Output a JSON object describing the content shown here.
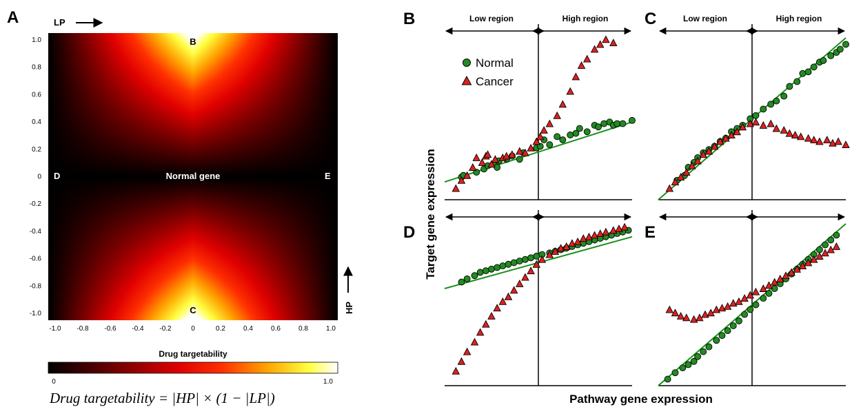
{
  "colors": {
    "normal_fill": "#228b22",
    "cancer_fill": "#e02020",
    "fit_line": "#1a8f1a",
    "heat_low": "#000000",
    "heat_mid": "#ff2000",
    "heat_high": "#ffff60"
  },
  "heatmap": {
    "letter": "A",
    "lp_label": "LP",
    "hp_label": "HP",
    "center_label": "Normal gene",
    "point_labels": {
      "B": "B",
      "C": "C",
      "D": "D",
      "E": "E"
    },
    "xticks": [
      "-1.0",
      "-0.8",
      "-0.6",
      "-0.4",
      "-0.2",
      "0",
      "0.2",
      "0.4",
      "0.6",
      "0.8",
      "1.0"
    ],
    "yticks": [
      "1.0",
      "0.8",
      "0.6",
      "0.4",
      "0.2",
      "0",
      "-0.2",
      "-0.4",
      "-0.6",
      "-0.8",
      "-1.0"
    ],
    "colorbar_title": "Drug targetability",
    "colorbar_min": "0",
    "colorbar_max": "1.0",
    "formula": "Drug targetability = |HP| × (1 − |LP|)"
  },
  "axes": {
    "ylabel": "Target gene expression",
    "xlabel": "Pathway gene expression",
    "low_region": "Low region",
    "high_region": "High region"
  },
  "legend": {
    "normal": "Normal",
    "cancer": "Cancer"
  },
  "chart_data": [
    {
      "id": "A",
      "type": "heatmap",
      "xlabel": "LP",
      "ylabel": "HP",
      "xlim": [
        -1,
        1
      ],
      "ylim": [
        -1,
        1
      ],
      "formula": "|HP| × (1 − |LP|)",
      "colorbar_range": [
        0,
        1
      ],
      "grid": false
    },
    {
      "id": "B",
      "type": "scatter",
      "regions": [
        "Low region",
        "High region"
      ],
      "fit_line": [
        [
          0.0,
          0.11
        ],
        [
          1.0,
          0.48
        ]
      ],
      "series": [
        {
          "name": "Normal",
          "points": [
            [
              0.09,
              0.14
            ],
            [
              0.1,
              0.15
            ],
            [
              0.17,
              0.17
            ],
            [
              0.21,
              0.19
            ],
            [
              0.23,
              0.21
            ],
            [
              0.26,
              0.22
            ],
            [
              0.28,
              0.2
            ],
            [
              0.29,
              0.24
            ],
            [
              0.33,
              0.25
            ],
            [
              0.36,
              0.27
            ],
            [
              0.4,
              0.25
            ],
            [
              0.42,
              0.29
            ],
            [
              0.49,
              0.32
            ],
            [
              0.51,
              0.33
            ],
            [
              0.53,
              0.37
            ],
            [
              0.56,
              0.34
            ],
            [
              0.6,
              0.39
            ],
            [
              0.63,
              0.37
            ],
            [
              0.67,
              0.4
            ],
            [
              0.7,
              0.41
            ],
            [
              0.72,
              0.44
            ],
            [
              0.76,
              0.42
            ],
            [
              0.8,
              0.46
            ],
            [
              0.82,
              0.45
            ],
            [
              0.85,
              0.47
            ],
            [
              0.88,
              0.48
            ],
            [
              0.9,
              0.46
            ],
            [
              0.92,
              0.47
            ],
            [
              0.95,
              0.47
            ],
            [
              1.0,
              0.49
            ]
          ]
        },
        {
          "name": "Cancer",
          "points": [
            [
              0.06,
              0.07
            ],
            [
              0.09,
              0.12
            ],
            [
              0.12,
              0.15
            ],
            [
              0.15,
              0.2
            ],
            [
              0.17,
              0.26
            ],
            [
              0.2,
              0.23
            ],
            [
              0.22,
              0.27
            ],
            [
              0.23,
              0.28
            ],
            [
              0.25,
              0.22
            ],
            [
              0.27,
              0.25
            ],
            [
              0.31,
              0.26
            ],
            [
              0.33,
              0.27
            ],
            [
              0.36,
              0.28
            ],
            [
              0.4,
              0.3
            ],
            [
              0.43,
              0.29
            ],
            [
              0.46,
              0.32
            ],
            [
              0.49,
              0.36
            ],
            [
              0.51,
              0.39
            ],
            [
              0.53,
              0.43
            ],
            [
              0.56,
              0.47
            ],
            [
              0.6,
              0.52
            ],
            [
              0.63,
              0.59
            ],
            [
              0.67,
              0.67
            ],
            [
              0.7,
              0.76
            ],
            [
              0.73,
              0.83
            ],
            [
              0.76,
              0.87
            ],
            [
              0.8,
              0.93
            ],
            [
              0.83,
              0.96
            ],
            [
              0.86,
              0.99
            ],
            [
              0.9,
              0.97
            ]
          ]
        }
      ]
    },
    {
      "id": "C",
      "type": "scatter",
      "regions": [
        "Low region",
        "High region"
      ],
      "fit_line": [
        [
          0.0,
          0.0
        ],
        [
          1.0,
          1.0
        ]
      ],
      "series": [
        {
          "name": "Normal",
          "points": [
            [
              0.1,
              0.12
            ],
            [
              0.14,
              0.15
            ],
            [
              0.16,
              0.2
            ],
            [
              0.19,
              0.23
            ],
            [
              0.21,
              0.26
            ],
            [
              0.24,
              0.29
            ],
            [
              0.27,
              0.31
            ],
            [
              0.3,
              0.33
            ],
            [
              0.33,
              0.36
            ],
            [
              0.36,
              0.38
            ],
            [
              0.39,
              0.42
            ],
            [
              0.42,
              0.44
            ],
            [
              0.45,
              0.46
            ],
            [
              0.49,
              0.5
            ],
            [
              0.52,
              0.52
            ],
            [
              0.56,
              0.56
            ],
            [
              0.6,
              0.59
            ],
            [
              0.63,
              0.61
            ],
            [
              0.67,
              0.64
            ],
            [
              0.7,
              0.7
            ],
            [
              0.74,
              0.73
            ],
            [
              0.77,
              0.78
            ],
            [
              0.8,
              0.79
            ],
            [
              0.83,
              0.82
            ],
            [
              0.86,
              0.85
            ],
            [
              0.88,
              0.86
            ],
            [
              0.92,
              0.89
            ],
            [
              0.95,
              0.91
            ],
            [
              0.97,
              0.93
            ],
            [
              1.0,
              0.96
            ]
          ]
        },
        {
          "name": "Cancer",
          "points": [
            [
              0.06,
              0.07
            ],
            [
              0.09,
              0.11
            ],
            [
              0.12,
              0.14
            ],
            [
              0.15,
              0.17
            ],
            [
              0.18,
              0.21
            ],
            [
              0.21,
              0.24
            ],
            [
              0.24,
              0.28
            ],
            [
              0.27,
              0.3
            ],
            [
              0.3,
              0.33
            ],
            [
              0.33,
              0.36
            ],
            [
              0.36,
              0.38
            ],
            [
              0.39,
              0.4
            ],
            [
              0.42,
              0.42
            ],
            [
              0.45,
              0.45
            ],
            [
              0.49,
              0.47
            ],
            [
              0.52,
              0.48
            ],
            [
              0.56,
              0.46
            ],
            [
              0.6,
              0.47
            ],
            [
              0.63,
              0.44
            ],
            [
              0.67,
              0.43
            ],
            [
              0.7,
              0.41
            ],
            [
              0.73,
              0.4
            ],
            [
              0.76,
              0.39
            ],
            [
              0.8,
              0.38
            ],
            [
              0.83,
              0.37
            ],
            [
              0.86,
              0.36
            ],
            [
              0.9,
              0.37
            ],
            [
              0.93,
              0.35
            ],
            [
              0.96,
              0.36
            ],
            [
              1.0,
              0.34
            ]
          ]
        }
      ]
    },
    {
      "id": "D",
      "type": "scatter",
      "regions": [
        "Low region",
        "High region"
      ],
      "fit_line": [
        [
          0.0,
          0.6
        ],
        [
          1.0,
          0.92
        ]
      ],
      "series": [
        {
          "name": "Normal",
          "points": [
            [
              0.09,
              0.64
            ],
            [
              0.12,
              0.66
            ],
            [
              0.16,
              0.68
            ],
            [
              0.19,
              0.7
            ],
            [
              0.22,
              0.71
            ],
            [
              0.25,
              0.72
            ],
            [
              0.28,
              0.73
            ],
            [
              0.31,
              0.74
            ],
            [
              0.34,
              0.75
            ],
            [
              0.37,
              0.76
            ],
            [
              0.4,
              0.77
            ],
            [
              0.43,
              0.78
            ],
            [
              0.46,
              0.79
            ],
            [
              0.49,
              0.8
            ],
            [
              0.52,
              0.81
            ],
            [
              0.56,
              0.82
            ],
            [
              0.59,
              0.83
            ],
            [
              0.62,
              0.84
            ],
            [
              0.65,
              0.85
            ],
            [
              0.68,
              0.86
            ],
            [
              0.71,
              0.87
            ],
            [
              0.74,
              0.88
            ],
            [
              0.77,
              0.89
            ],
            [
              0.8,
              0.9
            ],
            [
              0.83,
              0.91
            ],
            [
              0.86,
              0.92
            ],
            [
              0.89,
              0.93
            ],
            [
              0.92,
              0.94
            ],
            [
              0.95,
              0.95
            ],
            [
              0.98,
              0.96
            ]
          ]
        },
        {
          "name": "Cancer",
          "points": [
            [
              0.06,
              0.09
            ],
            [
              0.09,
              0.15
            ],
            [
              0.12,
              0.21
            ],
            [
              0.16,
              0.27
            ],
            [
              0.19,
              0.33
            ],
            [
              0.22,
              0.38
            ],
            [
              0.25,
              0.43
            ],
            [
              0.28,
              0.48
            ],
            [
              0.31,
              0.52
            ],
            [
              0.34,
              0.55
            ],
            [
              0.37,
              0.59
            ],
            [
              0.4,
              0.63
            ],
            [
              0.43,
              0.67
            ],
            [
              0.46,
              0.71
            ],
            [
              0.49,
              0.75
            ],
            [
              0.52,
              0.78
            ],
            [
              0.56,
              0.81
            ],
            [
              0.59,
              0.83
            ],
            [
              0.62,
              0.85
            ],
            [
              0.65,
              0.86
            ],
            [
              0.68,
              0.88
            ],
            [
              0.71,
              0.89
            ],
            [
              0.74,
              0.91
            ],
            [
              0.77,
              0.92
            ],
            [
              0.8,
              0.93
            ],
            [
              0.83,
              0.94
            ],
            [
              0.86,
              0.95
            ],
            [
              0.9,
              0.96
            ],
            [
              0.93,
              0.97
            ],
            [
              0.96,
              0.98
            ]
          ]
        }
      ]
    },
    {
      "id": "E",
      "type": "scatter",
      "regions": [
        "Low region",
        "High region"
      ],
      "fit_line": [
        [
          0.0,
          0.0
        ],
        [
          1.0,
          1.0
        ]
      ],
      "series": [
        {
          "name": "Normal",
          "points": [
            [
              0.05,
              0.04
            ],
            [
              0.09,
              0.08
            ],
            [
              0.13,
              0.11
            ],
            [
              0.16,
              0.13
            ],
            [
              0.19,
              0.15
            ],
            [
              0.21,
              0.18
            ],
            [
              0.24,
              0.21
            ],
            [
              0.27,
              0.24
            ],
            [
              0.31,
              0.28
            ],
            [
              0.34,
              0.31
            ],
            [
              0.37,
              0.34
            ],
            [
              0.4,
              0.37
            ],
            [
              0.43,
              0.4
            ],
            [
              0.46,
              0.44
            ],
            [
              0.49,
              0.47
            ],
            [
              0.52,
              0.5
            ],
            [
              0.56,
              0.54
            ],
            [
              0.59,
              0.57
            ],
            [
              0.62,
              0.6
            ],
            [
              0.65,
              0.63
            ],
            [
              0.68,
              0.66
            ],
            [
              0.71,
              0.69
            ],
            [
              0.74,
              0.72
            ],
            [
              0.77,
              0.75
            ],
            [
              0.8,
              0.78
            ],
            [
              0.83,
              0.81
            ],
            [
              0.86,
              0.84
            ],
            [
              0.89,
              0.87
            ],
            [
              0.92,
              0.9
            ],
            [
              0.95,
              0.93
            ]
          ]
        },
        {
          "name": "Cancer",
          "points": [
            [
              0.06,
              0.47
            ],
            [
              0.09,
              0.45
            ],
            [
              0.12,
              0.43
            ],
            [
              0.15,
              0.42
            ],
            [
              0.19,
              0.41
            ],
            [
              0.22,
              0.42
            ],
            [
              0.25,
              0.44
            ],
            [
              0.28,
              0.45
            ],
            [
              0.31,
              0.47
            ],
            [
              0.34,
              0.48
            ],
            [
              0.37,
              0.49
            ],
            [
              0.4,
              0.51
            ],
            [
              0.43,
              0.52
            ],
            [
              0.46,
              0.54
            ],
            [
              0.49,
              0.56
            ],
            [
              0.52,
              0.58
            ],
            [
              0.56,
              0.6
            ],
            [
              0.59,
              0.62
            ],
            [
              0.62,
              0.64
            ],
            [
              0.65,
              0.66
            ],
            [
              0.68,
              0.68
            ],
            [
              0.71,
              0.7
            ],
            [
              0.74,
              0.72
            ],
            [
              0.77,
              0.74
            ],
            [
              0.8,
              0.76
            ],
            [
              0.83,
              0.78
            ],
            [
              0.86,
              0.8
            ],
            [
              0.89,
              0.82
            ],
            [
              0.92,
              0.84
            ],
            [
              0.95,
              0.86
            ]
          ]
        }
      ]
    }
  ]
}
